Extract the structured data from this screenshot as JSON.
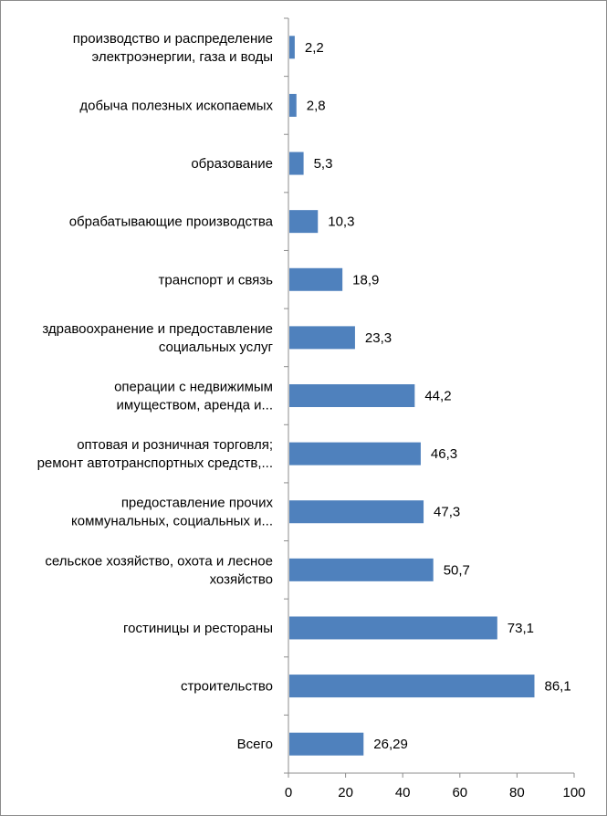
{
  "chart_data": {
    "type": "bar",
    "orientation": "horizontal",
    "categories": [
      [
        "производство и распределение",
        "электроэнергии, газа и воды"
      ],
      [
        "добыча полезных ископаемых"
      ],
      [
        "образование"
      ],
      [
        "обрабатывающие производства"
      ],
      [
        "транспорт и связь"
      ],
      [
        "здравоохранение и предоставление",
        "социальных услуг"
      ],
      [
        "операции  с недвижимым",
        "имуществом, аренда и..."
      ],
      [
        "оптовая и розничная торговля;",
        "ремонт  автотранспортных средств,..."
      ],
      [
        "предоставление прочих",
        "коммунальных, социальных и..."
      ],
      [
        "сельское хозяйство, охота и лесное",
        "хозяйство"
      ],
      [
        "гостиницы и рестораны"
      ],
      [
        "строительство"
      ],
      [
        "Всего"
      ]
    ],
    "values": [
      2.2,
      2.8,
      5.3,
      10.3,
      18.9,
      23.3,
      44.2,
      46.3,
      47.3,
      50.7,
      73.1,
      86.1,
      26.29
    ],
    "value_labels": [
      "2,2",
      "2,8",
      "5,3",
      "10,3",
      "18,9",
      "23,3",
      "44,2",
      "46,3",
      "47,3",
      "50,7",
      "73,1",
      "86,1",
      "26,29"
    ],
    "x_ticks": [
      0,
      20,
      40,
      60,
      80,
      100
    ],
    "x_tick_labels": [
      "0",
      "20",
      "40",
      "60",
      "80",
      "100"
    ],
    "xlim": [
      0,
      100
    ],
    "grid": false,
    "legend": "none",
    "bar_color": "#4f81bd",
    "title": "",
    "xlabel": "",
    "ylabel": ""
  }
}
